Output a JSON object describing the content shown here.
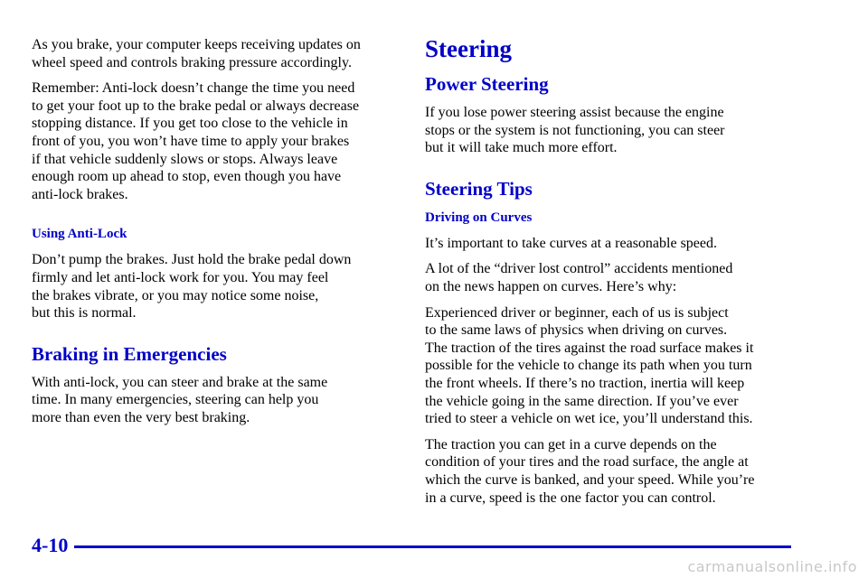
{
  "left_column": {
    "intro_paragraphs": [
      [
        "As you brake, your computer keeps receiving updates on",
        "wheel speed and controls braking pressure accordingly."
      ],
      [
        "Remember: Anti-lock doesn’t change the time you need",
        "to get your foot up to the brake pedal or always decrease",
        "stopping distance. If you get too close to the vehicle in",
        "front of you, you won’t have time to apply your brakes",
        "if that vehicle suddenly slows or stops. Always leave",
        "enough room up ahead to stop, even though you have",
        "anti-lock brakes."
      ]
    ],
    "subheading": "Using Anti-Lock",
    "subheading_paragraph": [
      "Don’t pump the brakes. Just hold the brake pedal down",
      "firmly and let anti-lock work for you. You may feel",
      "the brakes vibrate, or you may notice some noise,",
      "but this is normal."
    ],
    "heading": "Braking in Emergencies",
    "heading_paragraph": [
      "With anti-lock, you can steer and brake at the same",
      "time. In many emergencies, steering can help you",
      "more than even the very best braking."
    ]
  },
  "right_column": {
    "title": "Steering",
    "power_steering": {
      "heading": "Power Steering",
      "paragraph": [
        "If you lose power steering assist because the engine",
        "stops or the system is not functioning, you can steer",
        "but it will take much more effort."
      ]
    },
    "steering_tips": {
      "heading": "Steering Tips",
      "subheading": "Driving on Curves",
      "paragraphs": [
        [
          "It’s important to take curves at a reasonable speed."
        ],
        [
          "A lot of the “driver lost control” accidents mentioned",
          "on the news happen on curves. Here’s why:"
        ],
        [
          "Experienced driver or beginner, each of us is subject",
          "to the same laws of physics when driving on curves.",
          "The traction of the tires against the road surface makes it",
          "possible for the vehicle to change its path when you turn",
          "the front wheels. If there’s no traction, inertia will keep",
          "the vehicle going in the same direction. If you’ve ever",
          "tried to steer a vehicle on wet ice, you’ll understand this."
        ],
        [
          "The traction you can get in a curve depends on the",
          "condition of your tires and the road surface, the angle at",
          "which the curve is banked, and your speed. While you’re",
          "in a curve, speed is the one factor you can control."
        ]
      ]
    }
  },
  "footer": {
    "page_number": "4-10",
    "watermark": "carmanualsonline.info"
  }
}
